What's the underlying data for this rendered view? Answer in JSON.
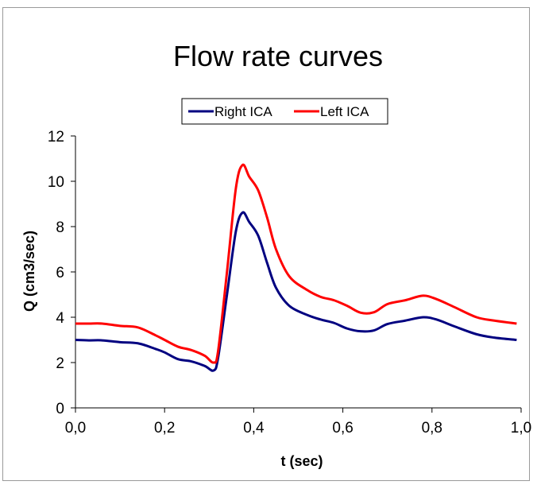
{
  "chart_data": {
    "type": "line",
    "title": "Flow rate curves",
    "xlabel": "t (sec)",
    "ylabel": "Q (cm3/sec)",
    "xlim": [
      0,
      1
    ],
    "ylim": [
      0,
      12
    ],
    "x_ticks": [
      "0,0",
      "0,2",
      "0,4",
      "0,6",
      "0,8",
      "1,0"
    ],
    "y_ticks": [
      "0",
      "2",
      "4",
      "6",
      "8",
      "10",
      "12"
    ],
    "grid": false,
    "legend_position": "top",
    "series": [
      {
        "name": "Right ICA",
        "color": "#000080",
        "points": [
          [
            0.0,
            3.0
          ],
          [
            0.03,
            2.98
          ],
          [
            0.06,
            2.98
          ],
          [
            0.1,
            2.9
          ],
          [
            0.14,
            2.85
          ],
          [
            0.18,
            2.6
          ],
          [
            0.2,
            2.45
          ],
          [
            0.23,
            2.15
          ],
          [
            0.26,
            2.05
          ],
          [
            0.29,
            1.85
          ],
          [
            0.31,
            1.65
          ],
          [
            0.32,
            2.2
          ],
          [
            0.34,
            5.0
          ],
          [
            0.36,
            7.8
          ],
          [
            0.375,
            8.62
          ],
          [
            0.39,
            8.2
          ],
          [
            0.41,
            7.6
          ],
          [
            0.43,
            6.4
          ],
          [
            0.45,
            5.3
          ],
          [
            0.48,
            4.5
          ],
          [
            0.52,
            4.1
          ],
          [
            0.55,
            3.9
          ],
          [
            0.58,
            3.75
          ],
          [
            0.61,
            3.5
          ],
          [
            0.64,
            3.38
          ],
          [
            0.67,
            3.42
          ],
          [
            0.7,
            3.7
          ],
          [
            0.74,
            3.85
          ],
          [
            0.78,
            4.0
          ],
          [
            0.81,
            3.9
          ],
          [
            0.85,
            3.6
          ],
          [
            0.9,
            3.25
          ],
          [
            0.94,
            3.1
          ],
          [
            0.99,
            3.0
          ]
        ]
      },
      {
        "name": "Left ICA",
        "color": "#ff0000",
        "points": [
          [
            0.0,
            3.72
          ],
          [
            0.03,
            3.72
          ],
          [
            0.06,
            3.72
          ],
          [
            0.1,
            3.62
          ],
          [
            0.14,
            3.55
          ],
          [
            0.18,
            3.2
          ],
          [
            0.2,
            3.0
          ],
          [
            0.23,
            2.7
          ],
          [
            0.26,
            2.55
          ],
          [
            0.29,
            2.3
          ],
          [
            0.31,
            2.0
          ],
          [
            0.32,
            2.5
          ],
          [
            0.34,
            6.0
          ],
          [
            0.36,
            9.7
          ],
          [
            0.375,
            10.72
          ],
          [
            0.39,
            10.2
          ],
          [
            0.41,
            9.6
          ],
          [
            0.43,
            8.4
          ],
          [
            0.45,
            7.0
          ],
          [
            0.48,
            5.8
          ],
          [
            0.52,
            5.2
          ],
          [
            0.55,
            4.9
          ],
          [
            0.58,
            4.75
          ],
          [
            0.61,
            4.5
          ],
          [
            0.64,
            4.2
          ],
          [
            0.67,
            4.22
          ],
          [
            0.7,
            4.58
          ],
          [
            0.74,
            4.75
          ],
          [
            0.78,
            4.95
          ],
          [
            0.81,
            4.8
          ],
          [
            0.85,
            4.45
          ],
          [
            0.9,
            4.0
          ],
          [
            0.94,
            3.85
          ],
          [
            0.99,
            3.72
          ]
        ]
      }
    ]
  }
}
